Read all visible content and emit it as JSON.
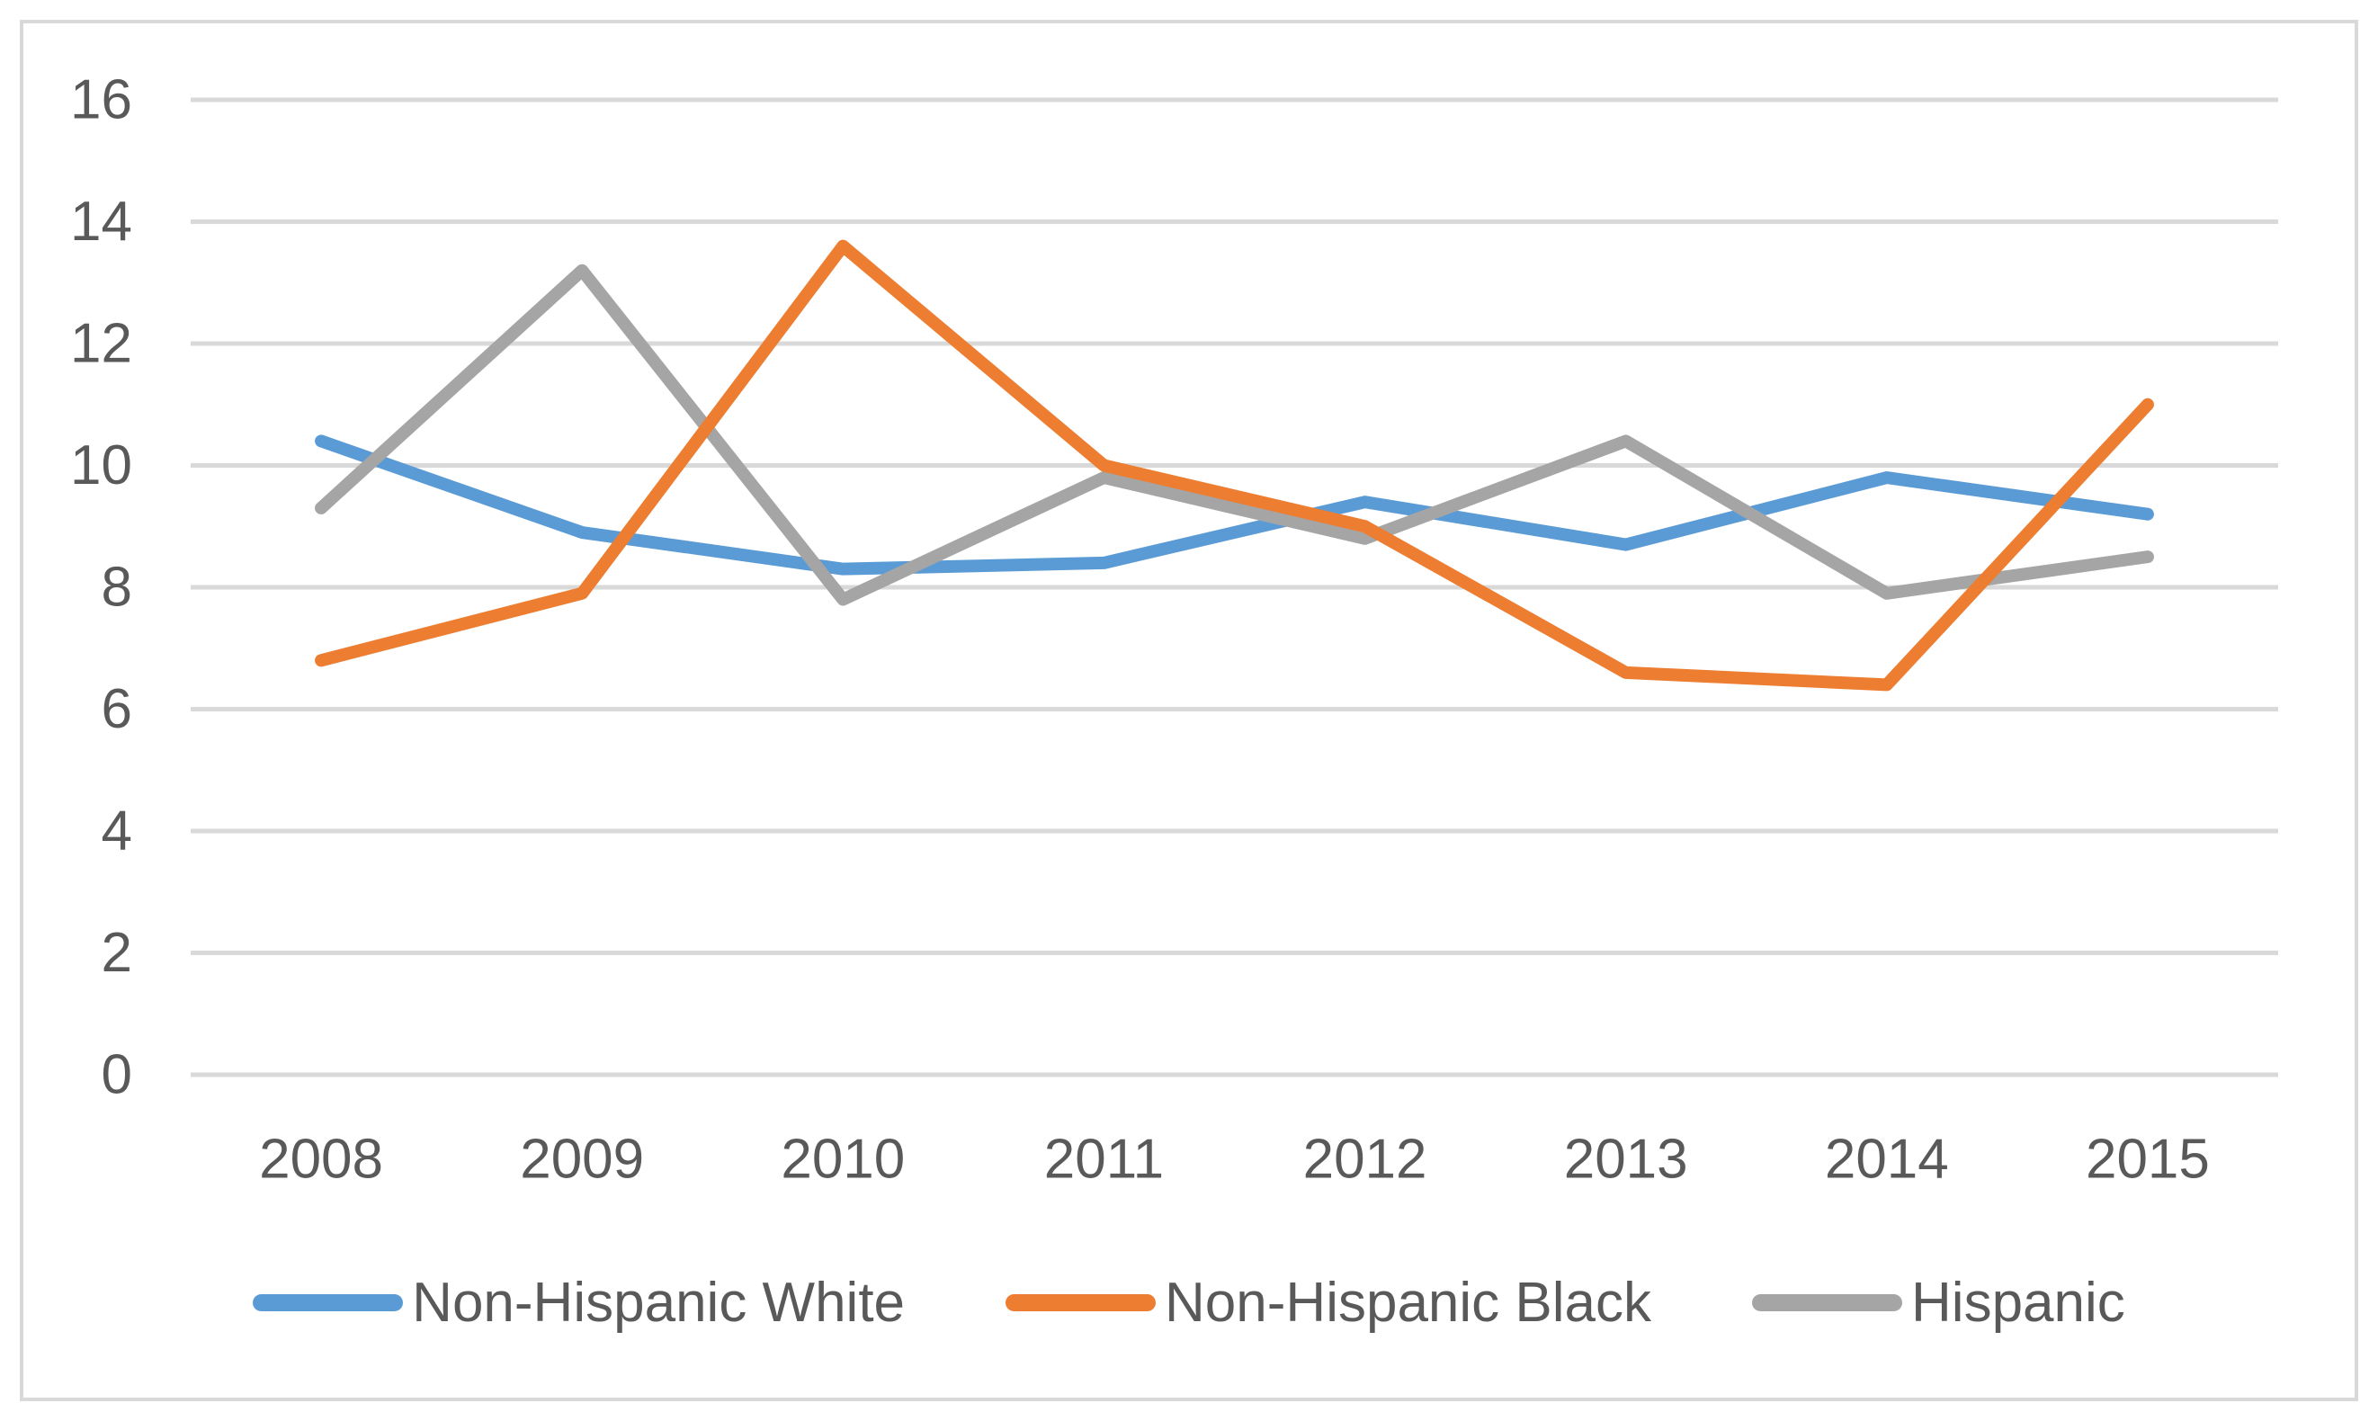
{
  "chart_data": {
    "type": "line",
    "title": "",
    "xlabel": "",
    "ylabel": "",
    "categories": [
      "2008",
      "2009",
      "2010",
      "2011",
      "2012",
      "2013",
      "2014",
      "2015"
    ],
    "series": [
      {
        "name": "Non-Hispanic White",
        "color": "#5B9BD5",
        "values": [
          10.4,
          8.9,
          8.3,
          8.4,
          9.4,
          8.7,
          9.8,
          9.2
        ]
      },
      {
        "name": "Hispanic",
        "color": "#A5A5A5",
        "values": [
          9.3,
          13.2,
          7.8,
          9.8,
          8.8,
          10.4,
          7.9,
          8.5
        ]
      },
      {
        "name": "Non-Hispanic Black",
        "color": "#ED7D31",
        "values": [
          6.8,
          7.9,
          13.6,
          10.0,
          9.0,
          6.6,
          6.4,
          11.0
        ]
      }
    ],
    "legend_order": [
      "Non-Hispanic White",
      "Non-Hispanic Black",
      "Hispanic"
    ],
    "ylim": [
      0,
      16
    ],
    "ytick_step": 2,
    "yticks": [
      "0",
      "2",
      "4",
      "6",
      "8",
      "10",
      "12",
      "14",
      "16"
    ],
    "grid": "horizontal",
    "gridline_color": "#D9D9D9",
    "tick_label_color": "#595959",
    "legend_position": "bottom"
  }
}
